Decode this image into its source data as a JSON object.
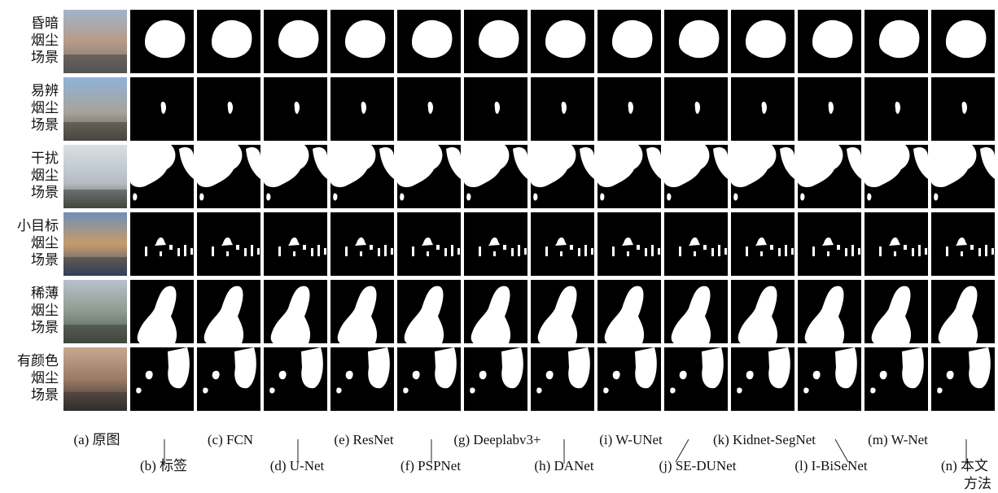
{
  "row_labels": [
    [
      "昏暗",
      "烟尘",
      "场景"
    ],
    [
      "易辨",
      "烟尘",
      "场景"
    ],
    [
      "干扰",
      "烟尘",
      "场景"
    ],
    [
      "小目标",
      "烟尘",
      "场景"
    ],
    [
      "稀薄",
      "烟尘",
      "场景"
    ],
    [
      "有颜色",
      "烟尘",
      "场景"
    ]
  ],
  "column_labels": [
    [
      "(a) 原图"
    ],
    [
      "(b) 标签"
    ],
    [
      "(c) FCN"
    ],
    [
      "(d) U-Net"
    ],
    [
      "(e) ResNet"
    ],
    [
      "(f) PSPNet"
    ],
    [
      "(g) Deeplabv3+"
    ],
    [
      "(h) DANet"
    ],
    [
      "(i) W-UNet"
    ],
    [
      "(j) SE-DUNet"
    ],
    [
      "(k) Kidnet-SegNet"
    ],
    [
      "(l) I-BiSeNet"
    ],
    [
      "(m) W-Net"
    ],
    [
      "(n) 本文",
      "方法"
    ]
  ]
}
